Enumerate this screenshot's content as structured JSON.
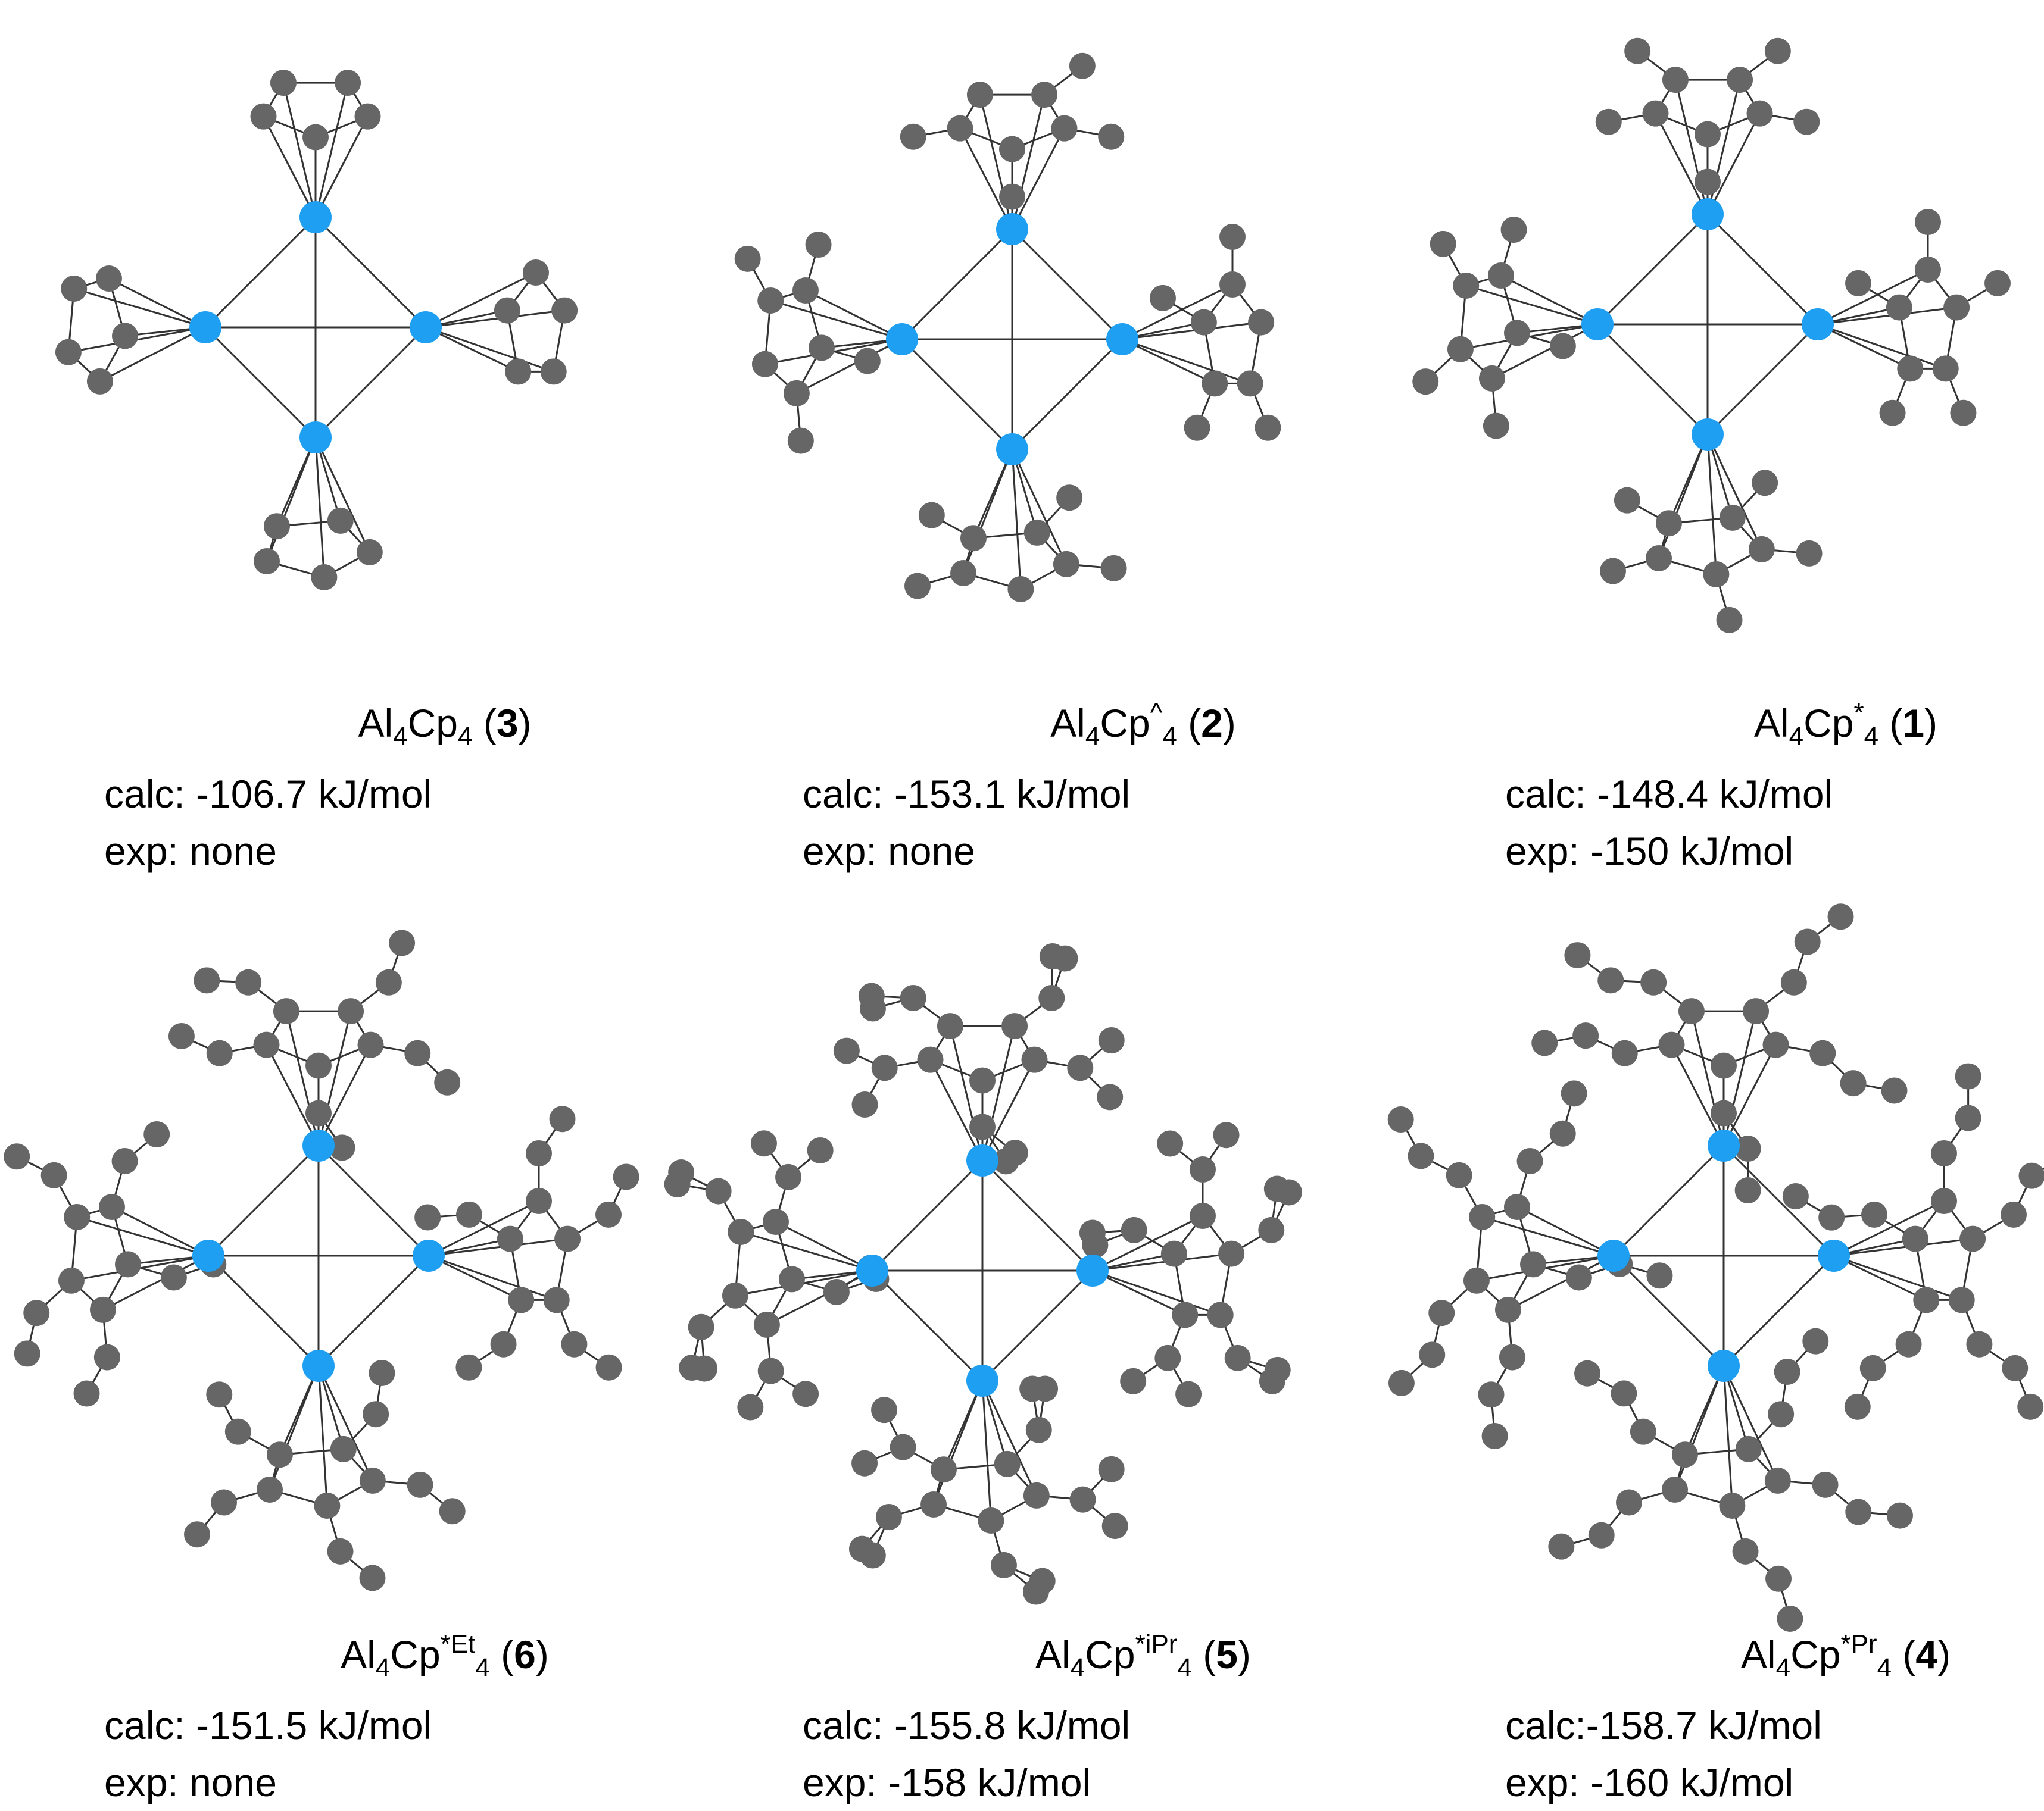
{
  "colors": {
    "aluminum": "#1e9ff2",
    "carbon": "#666666",
    "bond": "#333333"
  },
  "panels": [
    {
      "id": "al4cp4",
      "formula_el": "Al",
      "formula_n1": "4",
      "formula_ligand": "Cp",
      "formula_sup": "",
      "formula_n2": "4",
      "compound_no": "3",
      "calc": "calc: -106.7 kJ/mol",
      "exp": "exp: none",
      "ligand_type": "Cp"
    },
    {
      "id": "al4cpcaret4",
      "formula_el": "Al",
      "formula_n1": "4",
      "formula_ligand": "Cp",
      "formula_sup": "^",
      "formula_n2": "4",
      "compound_no": "2",
      "calc": "calc: -153.1 kJ/mol",
      "exp": "exp: none",
      "ligand_type": "Me4"
    },
    {
      "id": "al4cpstar4",
      "formula_el": "Al",
      "formula_n1": "4",
      "formula_ligand": "Cp",
      "formula_sup": "*",
      "formula_n2": "4",
      "compound_no": "1",
      "calc": "calc: -148.4 kJ/mol",
      "exp": "exp: -150 kJ/mol",
      "ligand_type": "Me5"
    },
    {
      "id": "al4cpstaret4",
      "formula_el": "Al",
      "formula_n1": "4",
      "formula_ligand": "Cp",
      "formula_sup": "*Et",
      "formula_n2": "4",
      "compound_no": "6",
      "calc": "calc: -151.5 kJ/mol",
      "exp": "exp: none",
      "ligand_type": "Et"
    },
    {
      "id": "al4cpstaripr4",
      "formula_el": "Al",
      "formula_n1": "4",
      "formula_ligand": "Cp",
      "formula_sup": "*iPr",
      "formula_n2": "4",
      "compound_no": "5",
      "calc": "calc: -155.8 kJ/mol",
      "exp": "exp: -158 kJ/mol",
      "ligand_type": "iPr"
    },
    {
      "id": "al4cpstarpr4",
      "formula_el": "Al",
      "formula_n1": "4",
      "formula_ligand": "Cp",
      "formula_sup": "*Pr",
      "formula_n2": "4",
      "compound_no": "4",
      "calc": "calc:-158.7 kJ/mol",
      "exp": "exp: -160 kJ/mol",
      "ligand_type": "Pr"
    }
  ]
}
